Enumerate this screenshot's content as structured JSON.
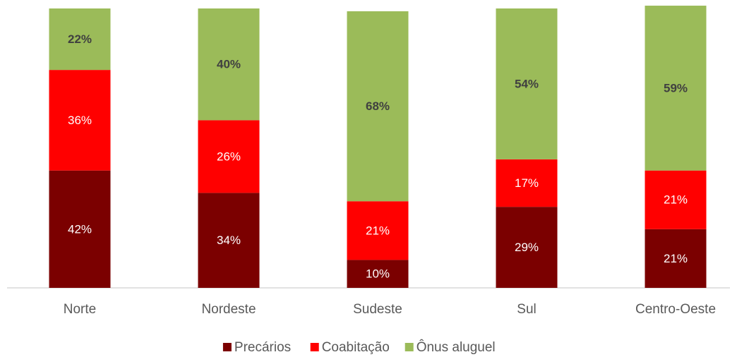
{
  "chart_data": {
    "type": "stacked_bar",
    "categories": [
      "Norte",
      "Nordeste",
      "Sudeste",
      "Sul",
      "Centro-Oeste"
    ],
    "series": [
      {
        "name": "Precários",
        "color": "#7b0000",
        "values": [
          42,
          34,
          10,
          29,
          21
        ],
        "value_labels": [
          "42%",
          "34%",
          "10%",
          "29%",
          "21%"
        ]
      },
      {
        "name": "Coabitação",
        "color": "#ff0000",
        "values": [
          36,
          26,
          21,
          17,
          21
        ],
        "value_labels": [
          "36%",
          "26%",
          "21%",
          "17%",
          "21%"
        ]
      },
      {
        "name": "Ônus aluguel",
        "color": "#9bbb59",
        "values": [
          22,
          40,
          68,
          54,
          59
        ],
        "value_labels": [
          "22%",
          "40%",
          "68%",
          "54%",
          "59%"
        ]
      }
    ],
    "ylim": [
      0,
      100
    ],
    "legend": "bottom"
  }
}
